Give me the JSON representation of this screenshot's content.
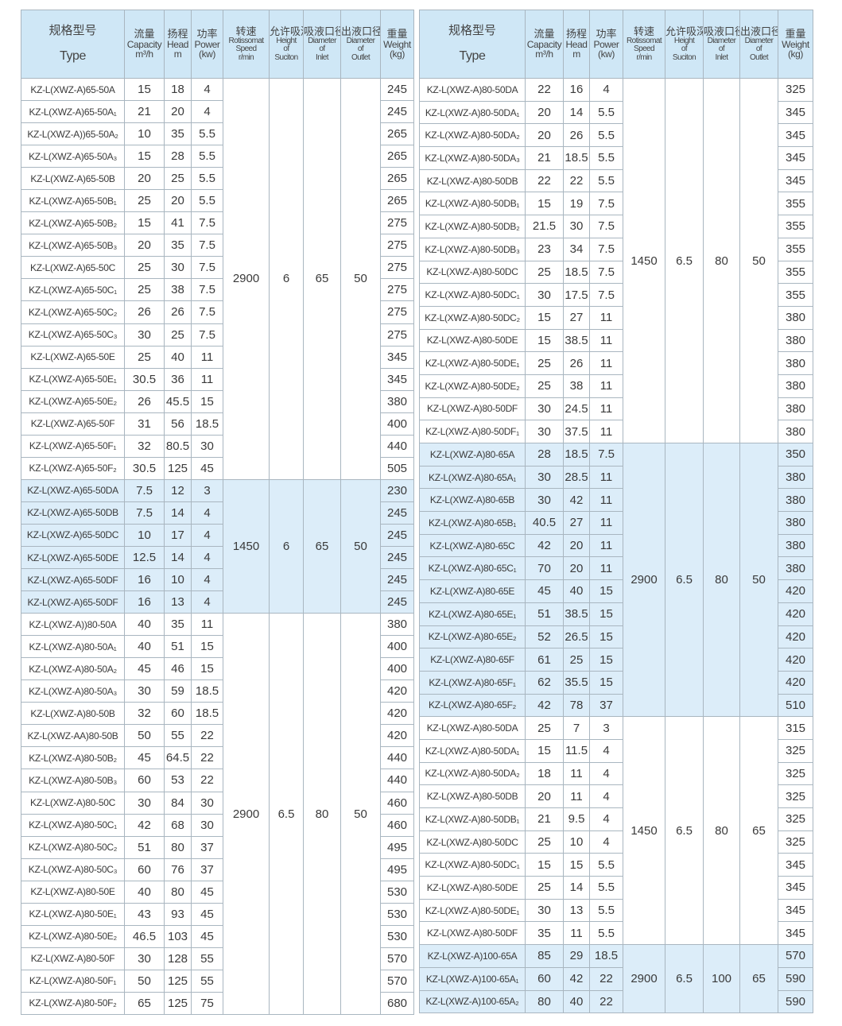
{
  "colors": {
    "header_bg": "#cfe7f6",
    "highlight_bg": "#dcedf9",
    "border": "#a9b6c0"
  },
  "header": [
    {
      "cn": "规格型号",
      "en": [
        "Type"
      ]
    },
    {
      "cn": "流量",
      "en": [
        "Capacity",
        "m³/h"
      ]
    },
    {
      "cn": "扬程",
      "en": [
        "Head",
        "m"
      ]
    },
    {
      "cn": "功率",
      "en": [
        "Power",
        "(kw)"
      ]
    },
    {
      "cn": "转速",
      "en": [
        "Rotissomat",
        "Speed",
        "r/min"
      ]
    },
    {
      "cn": "允许吸深",
      "en": [
        "Height",
        "of",
        "Suciton"
      ]
    },
    {
      "cn": "吸液口径",
      "en": [
        "Diameter",
        "of",
        "Inlet"
      ]
    },
    {
      "cn": "出液口径",
      "en": [
        "Diameter",
        "of",
        "Outlet"
      ]
    },
    {
      "cn": "重量",
      "en": [
        "Weight",
        "(kg)"
      ]
    }
  ],
  "tables": [
    {
      "groups": [
        {
          "speed": "2900",
          "suction": "6",
          "inlet": "65",
          "outlet": "50",
          "highlight": false,
          "rows": [
            [
              "KZ-L(XWZ-A)65-50A",
              "15",
              "18",
              "4",
              "245"
            ],
            [
              "KZ-L(XWZ-A)65-50A₁",
              "21",
              "20",
              "4",
              "245"
            ],
            [
              "KZ-L(XWZ-A))65-50A₂",
              "10",
              "35",
              "5.5",
              "265"
            ],
            [
              "KZ-L(XWZ-A)65-50A₃",
              "15",
              "28",
              "5.5",
              "265"
            ],
            [
              "KZ-L(XWZ-A)65-50B",
              "20",
              "25",
              "5.5",
              "265"
            ],
            [
              "KZ-L(XWZ-A)65-50B₁",
              "25",
              "20",
              "5.5",
              "265"
            ],
            [
              "KZ-L(XWZ-A)65-50B₂",
              "15",
              "41",
              "7.5",
              "275"
            ],
            [
              "KZ-L(XWZ-A)65-50B₃",
              "20",
              "35",
              "7.5",
              "275"
            ],
            [
              "KZ-L(XWZ-A)65-50C",
              "25",
              "30",
              "7.5",
              "275"
            ],
            [
              "KZ-L(XWZ-A)65-50C₁",
              "25",
              "38",
              "7.5",
              "275"
            ],
            [
              "KZ-L(XWZ-A)65-50C₂",
              "26",
              "26",
              "7.5",
              "275"
            ],
            [
              "KZ-L(XWZ-A)65-50C₃",
              "30",
              "25",
              "7.5",
              "275"
            ],
            [
              "KZ-L(XWZ-A)65-50E",
              "25",
              "40",
              "11",
              "345"
            ],
            [
              "KZ-L(XWZ-A)65-50E₁",
              "30.5",
              "36",
              "11",
              "345"
            ],
            [
              "KZ-L(XWZ-A)65-50E₂",
              "26",
              "45.5",
              "15",
              "380"
            ],
            [
              "KZ-L(XWZ-A)65-50F",
              "31",
              "56",
              "18.5",
              "400"
            ],
            [
              "KZ-L(XWZ-A)65-50F₁",
              "32",
              "80.5",
              "30",
              "440"
            ],
            [
              "KZ-L(XWZ-A)65-50F₂",
              "30.5",
              "125",
              "45",
              "505"
            ]
          ]
        },
        {
          "speed": "1450",
          "suction": "6",
          "inlet": "65",
          "outlet": "50",
          "highlight": true,
          "rows": [
            [
              "KZ-L(XWZ-A)65-50DA",
              "7.5",
              "12",
              "3",
              "230"
            ],
            [
              "KZ-L(XWZ-A)65-50DB",
              "7.5",
              "14",
              "4",
              "245"
            ],
            [
              "KZ-L(XWZ-A)65-50DC",
              "10",
              "17",
              "4",
              "245"
            ],
            [
              "KZ-L(XWZ-A)65-50DE",
              "12.5",
              "14",
              "4",
              "245"
            ],
            [
              "KZ-L(XWZ-A)65-50DF",
              "16",
              "10",
              "4",
              "245"
            ],
            [
              "KZ-L(XWZ-A)65-50DF",
              "16",
              "13",
              "4",
              "245"
            ]
          ]
        },
        {
          "speed": "2900",
          "suction": "6.5",
          "inlet": "80",
          "outlet": "50",
          "highlight": false,
          "rows": [
            [
              "KZ-L(XWZ-A))80-50A",
              "40",
              "35",
              "11",
              "380"
            ],
            [
              "KZ-L(XWZ-A)80-50A₁",
              "40",
              "51",
              "15",
              "400"
            ],
            [
              "KZ-L(XWZ-A)80-50A₂",
              "45",
              "46",
              "15",
              "400"
            ],
            [
              "KZ-L(XWZ-A)80-50A₃",
              "30",
              "59",
              "18.5",
              "420"
            ],
            [
              "KZ-L(XWZ-A)80-50B",
              "32",
              "60",
              "18.5",
              "420"
            ],
            [
              "KZ-L(XWZ-AA)80-50B",
              "50",
              "55",
              "22",
              "420"
            ],
            [
              "KZ-L(XWZ-A)80-50B₂",
              "45",
              "64.5",
              "22",
              "440"
            ],
            [
              "KZ-L(XWZ-A)80-50B₃",
              "60",
              "53",
              "22",
              "440"
            ],
            [
              "KZ-L(XWZ-A)80-50C",
              "30",
              "84",
              "30",
              "460"
            ],
            [
              "KZ-L(XWZ-A)80-50C₁",
              "42",
              "68",
              "30",
              "460"
            ],
            [
              "KZ-L(XWZ-A)80-50C₂",
              "51",
              "80",
              "37",
              "495"
            ],
            [
              "KZ-L(XWZ-A)80-50C₃",
              "60",
              "76",
              "37",
              "495"
            ],
            [
              "KZ-L(XWZ-A)80-50E",
              "40",
              "80",
              "45",
              "530"
            ],
            [
              "KZ-L(XWZ-A)80-50E₁",
              "43",
              "93",
              "45",
              "530"
            ],
            [
              "KZ-L(XWZ-A)80-50E₂",
              "46.5",
              "103",
              "45",
              "530"
            ],
            [
              "KZ-L(XWZ-A)80-50F",
              "30",
              "128",
              "55",
              "570"
            ],
            [
              "KZ-L(XWZ-A)80-50F₁",
              "50",
              "125",
              "55",
              "570"
            ],
            [
              "KZ-L(XWZ-A)80-50F₂",
              "65",
              "125",
              "75",
              "680"
            ]
          ]
        }
      ]
    },
    {
      "groups": [
        {
          "speed": "1450",
          "suction": "6.5",
          "inlet": "80",
          "outlet": "50",
          "highlight": false,
          "rows": [
            [
              "KZ-L(XWZ-A)80-50DA",
              "22",
              "16",
              "4",
              "325"
            ],
            [
              "KZ-L(XWZ-A)80-50DA₁",
              "20",
              "14",
              "5.5",
              "345"
            ],
            [
              "KZ-L(XWZ-A)80-50DA₂",
              "20",
              "26",
              "5.5",
              "345"
            ],
            [
              "KZ-L(XWZ-A)80-50DA₃",
              "21",
              "18.5",
              "5.5",
              "345"
            ],
            [
              "KZ-L(XWZ-A)80-50DB",
              "22",
              "22",
              "5.5",
              "345"
            ],
            [
              "KZ-L(XWZ-A)80-50DB₁",
              "15",
              "19",
              "7.5",
              "355"
            ],
            [
              "KZ-L(XWZ-A)80-50DB₂",
              "21.5",
              "30",
              "7.5",
              "355"
            ],
            [
              "KZ-L(XWZ-A)80-50DB₃",
              "23",
              "34",
              "7.5",
              "355"
            ],
            [
              "KZ-L(XWZ-A)80-50DC",
              "25",
              "18.5",
              "7.5",
              "355"
            ],
            [
              "KZ-L(XWZ-A)80-50DC₁",
              "30",
              "17.5",
              "7.5",
              "355"
            ],
            [
              "KZ-L(XWZ-A)80-50DC₂",
              "15",
              "27",
              "11",
              "380"
            ],
            [
              "KZ-L(XWZ-A)80-50DE",
              "15",
              "38.5",
              "11",
              "380"
            ],
            [
              "KZ-L(XWZ-A)80-50DE₁",
              "25",
              "26",
              "11",
              "380"
            ],
            [
              "KZ-L(XWZ-A)80-50DE₂",
              "25",
              "38",
              "11",
              "380"
            ],
            [
              "KZ-L(XWZ-A)80-50DF",
              "30",
              "24.5",
              "11",
              "380"
            ],
            [
              "KZ-L(XWZ-A)80-50DF₁",
              "30",
              "37.5",
              "11",
              "380"
            ]
          ]
        },
        {
          "speed": "2900",
          "suction": "6.5",
          "inlet": "80",
          "outlet": "50",
          "highlight": true,
          "rows": [
            [
              "KZ-L(XWZ-A)80-65A",
              "28",
              "18.5",
              "7.5",
              "350"
            ],
            [
              "KZ-L(XWZ-A)80-65A₁",
              "30",
              "28.5",
              "11",
              "380"
            ],
            [
              "KZ-L(XWZ-A)80-65B",
              "30",
              "42",
              "11",
              "380"
            ],
            [
              "KZ-L(XWZ-A)80-65B₁",
              "40.5",
              "27",
              "11",
              "380"
            ],
            [
              "KZ-L(XWZ-A)80-65C",
              "42",
              "20",
              "11",
              "380"
            ],
            [
              "KZ-L(XWZ-A)80-65C₁",
              "70",
              "20",
              "11",
              "380"
            ],
            [
              "KZ-L(XWZ-A)80-65E",
              "45",
              "40",
              "15",
              "420"
            ],
            [
              "KZ-L(XWZ-A)80-65E₁",
              "51",
              "38.5",
              "15",
              "420"
            ],
            [
              "KZ-L(XWZ-A)80-65E₂",
              "52",
              "26.5",
              "15",
              "420"
            ],
            [
              "KZ-L(XWZ-A)80-65F",
              "61",
              "25",
              "15",
              "420"
            ],
            [
              "KZ-L(XWZ-A)80-65F₁",
              "62",
              "35.5",
              "15",
              "420"
            ],
            [
              "KZ-L(XWZ-A)80-65F₂",
              "42",
              "78",
              "37",
              "510"
            ]
          ]
        },
        {
          "speed": "1450",
          "suction": "6.5",
          "inlet": "80",
          "outlet": "65",
          "highlight": false,
          "rows": [
            [
              "KZ-L(XWZ-A)80-50DA",
              "25",
              "7",
              "3",
              "315"
            ],
            [
              "KZ-L(XWZ-A)80-50DA₁",
              "15",
              "11.5",
              "4",
              "325"
            ],
            [
              "KZ-L(XWZ-A)80-50DA₂",
              "18",
              "11",
              "4",
              "325"
            ],
            [
              "KZ-L(XWZ-A)80-50DB",
              "20",
              "11",
              "4",
              "325"
            ],
            [
              "KZ-L(XWZ-A)80-50DB₁",
              "21",
              "9.5",
              "4",
              "325"
            ],
            [
              "KZ-L(XWZ-A)80-50DC",
              "25",
              "10",
              "4",
              "325"
            ],
            [
              "KZ-L(XWZ-A)80-50DC₁",
              "15",
              "15",
              "5.5",
              "345"
            ],
            [
              "KZ-L(XWZ-A)80-50DE",
              "25",
              "14",
              "5.5",
              "345"
            ],
            [
              "KZ-L(XWZ-A)80-50DE₁",
              "30",
              "13",
              "5.5",
              "345"
            ],
            [
              "KZ-L(XWZ-A)80-50DF",
              "35",
              "11",
              "5.5",
              "345"
            ]
          ]
        },
        {
          "speed": "2900",
          "suction": "6.5",
          "inlet": "100",
          "outlet": "65",
          "highlight": true,
          "rows": [
            [
              "KZ-L(XWZ-A)100-65A",
              "85",
              "29",
              "18.5",
              "570"
            ],
            [
              "KZ-L(XWZ-A)100-65A₁",
              "60",
              "42",
              "22",
              "590"
            ],
            [
              "KZ-L(XWZ-A)100-65A₂",
              "80",
              "40",
              "22",
              "590"
            ]
          ]
        }
      ]
    }
  ]
}
